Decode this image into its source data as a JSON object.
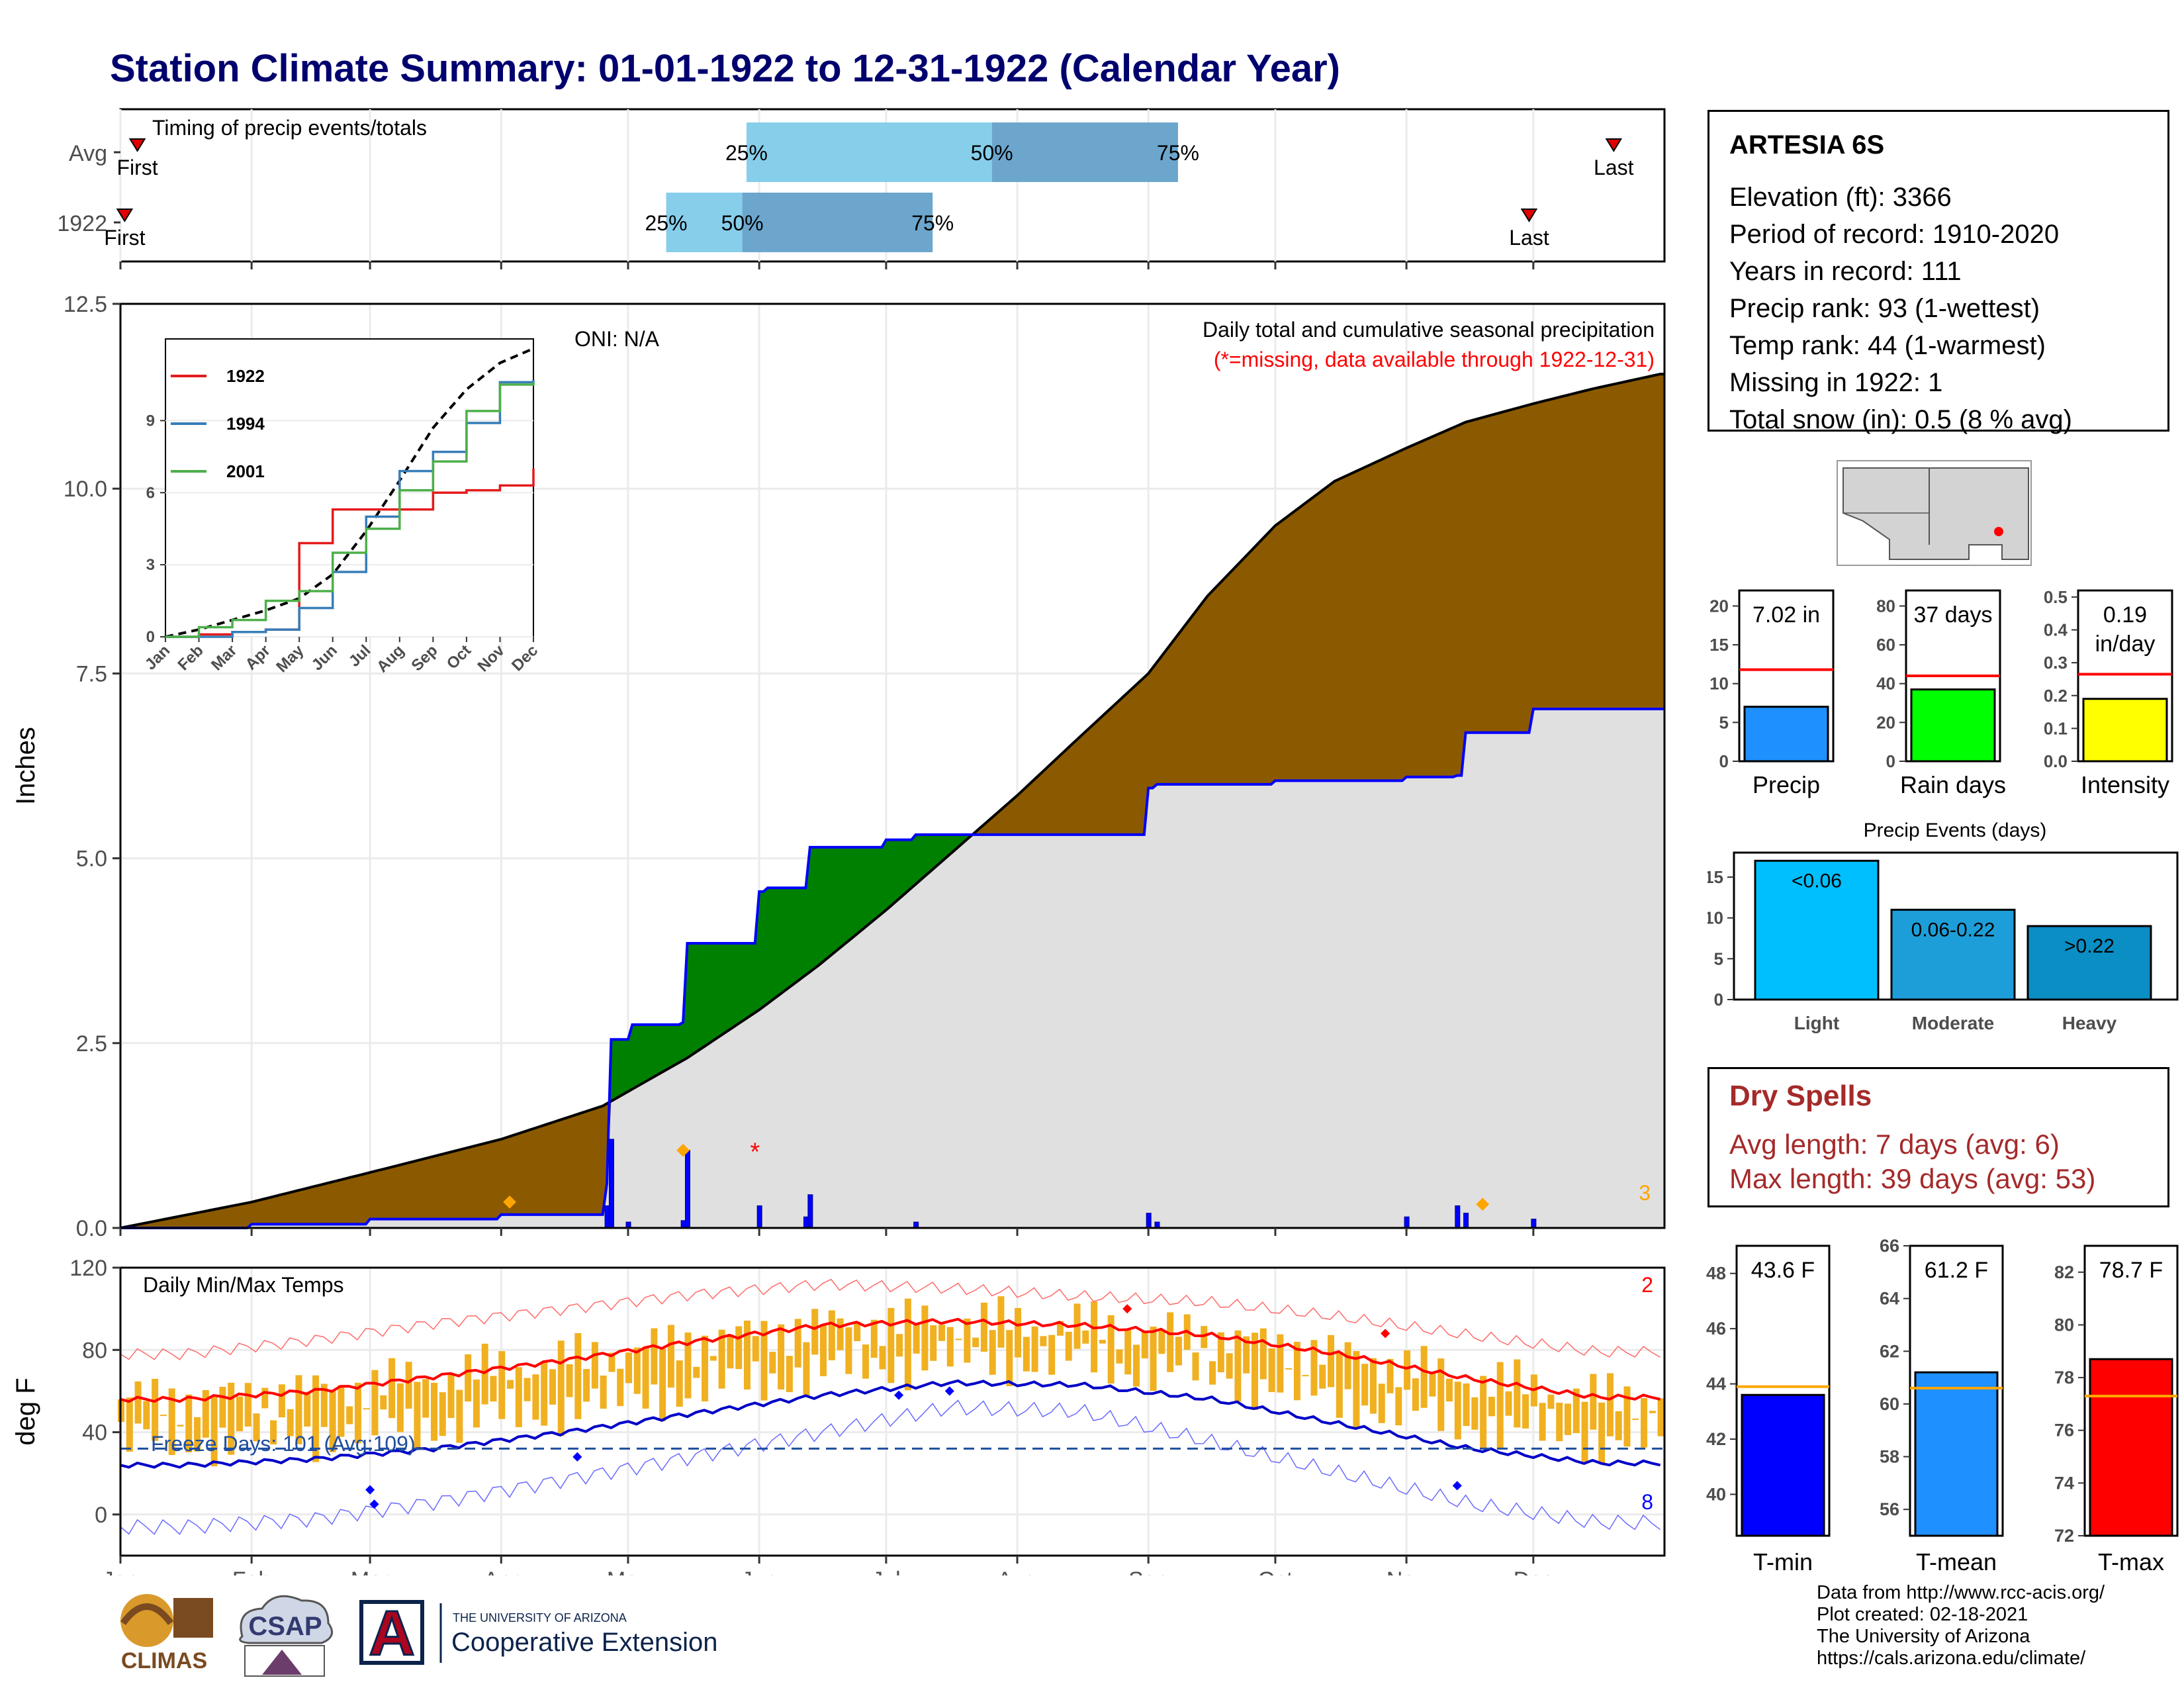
{
  "title": "Station Climate Summary: 01-01-1922 to 12-31-1922 (Calendar Year)",
  "colors": {
    "title": "#00006e",
    "observed_fill": "#8b5a00",
    "surplus_fill": "#008000",
    "normal_fill": "#e0e0e0",
    "observed_line": "#0000ff",
    "daily_bar": "#f0b020",
    "tmax_line": "#ff0000",
    "tmin_line": "#0000c8",
    "dry_spells": "#a52a2a",
    "missing": "#ff0000"
  },
  "station": {
    "name": "ARTESIA 6S",
    "elevation": "Elevation (ft): 3366",
    "period": "Period of record: 1910-2020",
    "years": "Years in record: 111",
    "precip_rank": "Precip rank: 93 (1-wettest)",
    "temp_rank": "Temp rank: 44 (1-warmest)",
    "missing": "Missing in 1922: 1",
    "snow": "Total snow (in): 0.5 (8 % avg)"
  },
  "timing_panel": {
    "label": "Timing of precip events/totals",
    "rows": [
      "Avg",
      "1922"
    ],
    "first_label": "First",
    "last_label": "Last",
    "pct_labels": [
      "25%",
      "50%",
      "75%"
    ],
    "avg": {
      "first": "Jan 5",
      "p25": "May 29",
      "p50": "Jul 26",
      "p75": "Sep 8",
      "last": "Dec 20"
    },
    "y1922": {
      "first": "Jan 2",
      "p25": "May 10",
      "p50": "May 28",
      "p75": "Jul 12",
      "last": "Nov 30"
    }
  },
  "precip_panel": {
    "ylabel": "Inches",
    "y_ticks": [
      "0.0",
      "2.5",
      "5.0",
      "7.5",
      "10.0",
      "12.5"
    ],
    "ylim": [
      0,
      12.5
    ],
    "oni": "ONI: N/A",
    "desc": "Daily total and cumulative seasonal precipitation",
    "missing_note": "(*=missing, data available through 1922-12-31)",
    "corner_count": "3",
    "missing_marker": "*"
  },
  "inset": {
    "y_ticks": [
      "0",
      "3",
      "6",
      "9"
    ],
    "months": [
      "Jan",
      "Feb",
      "Mar",
      "Apr",
      "May",
      "Jun",
      "Jul",
      "Aug",
      "Sep",
      "Oct",
      "Nov",
      "Dec"
    ],
    "legend": [
      "1922",
      "1994",
      "2001"
    ],
    "legend_colors": [
      "#e41a1c",
      "#377eb8",
      "#4daf4a"
    ]
  },
  "temp_panel": {
    "ylabel": "deg F",
    "label": "Daily Min/Max Temps",
    "freeze": "Freeze Days: 101 (Avg:109)",
    "y_ticks": [
      "0",
      "40",
      "80",
      "120"
    ],
    "count_high": "2",
    "count_low": "8"
  },
  "x_months": [
    "Jan",
    "Feb",
    "Mar",
    "Apr",
    "May",
    "Jun",
    "Jul",
    "Aug",
    "Sep",
    "Oct",
    "Nov",
    "Dec"
  ],
  "mini_bars": [
    {
      "label": "Precip",
      "value_text": "7.02 in",
      "value": 7.02,
      "avg": 11.8,
      "ylim": [
        0,
        22
      ],
      "ticks": [
        "0",
        "5",
        "10",
        "15",
        "20"
      ],
      "color": "#1e90ff"
    },
    {
      "label": "Rain days",
      "value_text": "37 days",
      "value": 37,
      "avg": 44,
      "ylim": [
        0,
        88
      ],
      "ticks": [
        "0",
        "20",
        "40",
        "60",
        "80"
      ],
      "color": "#00ff00"
    },
    {
      "label": "Intensity",
      "value_text": "0.19",
      "value_text2": "in/day",
      "value": 0.19,
      "avg": 0.265,
      "ylim": [
        0,
        0.52
      ],
      "ticks": [
        "0.0",
        "0.1",
        "0.2",
        "0.3",
        "0.4",
        "0.5"
      ],
      "color": "#ffff00"
    }
  ],
  "events": {
    "title": "Precip Events (days)",
    "ticks": [
      "0",
      "5",
      "10",
      "15"
    ],
    "bars": [
      {
        "label": "Light",
        "range": "<0.06",
        "value": 17,
        "color": "#00bfff"
      },
      {
        "label": "Moderate",
        "range": "0.06-0.22",
        "value": 11,
        "color": "#1e9ed8"
      },
      {
        "label": "Heavy",
        "range": ">0.22",
        "value": 9,
        "color": "#0a8ec4"
      }
    ]
  },
  "dry_spells": {
    "title": "Dry Spells",
    "avg": "Avg length: 7 days (avg: 6)",
    "max": "Max length: 39 days (avg: 53)"
  },
  "temp_bars": [
    {
      "label": "T-min",
      "value_text": "43.6 F",
      "value": 43.6,
      "avg": 43.9,
      "ylim": [
        38.5,
        49
      ],
      "ticks": [
        "40",
        "42",
        "44",
        "46",
        "48"
      ],
      "color": "#0000ff"
    },
    {
      "label": "T-mean",
      "value_text": "61.2 F",
      "value": 61.2,
      "avg": 60.6,
      "ylim": [
        55,
        66
      ],
      "ticks": [
        "56",
        "58",
        "60",
        "62",
        "64",
        "66"
      ],
      "color": "#1e90ff"
    },
    {
      "label": "T-max",
      "value_text": "78.7 F",
      "value": 78.7,
      "avg": 77.3,
      "ylim": [
        72,
        83
      ],
      "ticks": [
        "72",
        "74",
        "76",
        "78",
        "80",
        "82"
      ],
      "color": "#ff0000"
    }
  ],
  "footer": [
    "Data from http://www.rcc-acis.org/",
    "Plot created: 02-18-2021",
    "The University of Arizona",
    "https://cals.arizona.edu/climate/"
  ],
  "logos": {
    "climas": "CLIMAS",
    "csap": "CSAP",
    "ua_small": "THE UNIVERSITY OF ARIZONA",
    "coop": "Cooperative Extension",
    "ua_letter": "A"
  },
  "chart_data": [
    {
      "type": "area",
      "title": "Daily total and cumulative seasonal precipitation",
      "ylabel": "Inches",
      "ylim": [
        0,
        12.5
      ],
      "series": [
        {
          "name": "cumulative normal",
          "x": [
            "Jan 1",
            "Feb 1",
            "Mar 1",
            "Apr 1",
            "Apr 25",
            "May 15",
            "Jun 1",
            "Jun 15",
            "Jul 1",
            "Jul 15",
            "Aug 1",
            "Aug 15",
            "Sep 1",
            "Sep 15",
            "Oct 1",
            "Oct 15",
            "Nov 1",
            "Nov 15",
            "Dec 1",
            "Dec 15",
            "Dec 31"
          ],
          "values": [
            0,
            0.35,
            0.75,
            1.2,
            1.65,
            2.3,
            2.95,
            3.55,
            4.3,
            5.0,
            5.85,
            6.6,
            7.5,
            8.55,
            9.5,
            10.1,
            10.55,
            10.9,
            11.15,
            11.35,
            11.55
          ]
        },
        {
          "name": "1922 observed",
          "x": [
            "Jan 1",
            "Feb 1",
            "Mar 1",
            "Apr 1",
            "Apr 26",
            "Apr 27",
            "May 2",
            "May 14",
            "May 15",
            "Jun 1",
            "Jun 3",
            "Jun 12",
            "Jun 13",
            "Jul 1",
            "Jul 8",
            "Jul 26",
            "Aug 1",
            "Sep 1",
            "Sep 3",
            "Oct 1",
            "Nov 1",
            "Nov 13",
            "Nov 15",
            "Dec 1",
            "Dec 31"
          ],
          "values": [
            0,
            0.05,
            0.12,
            0.18,
            0.6,
            2.55,
            2.75,
            2.78,
            3.85,
            4.55,
            4.6,
            4.6,
            5.15,
            5.25,
            5.32,
            5.32,
            5.32,
            5.95,
            6.0,
            6.05,
            6.1,
            6.12,
            6.7,
            7.02,
            7.02
          ]
        }
      ],
      "daily_bars": {
        "x": [
          "Apr 26",
          "Apr 27",
          "May 1",
          "May 14",
          "May 15",
          "Jun 1",
          "Jun 12",
          "Jun 13",
          "Jul 8",
          "Sep 1",
          "Sep 3",
          "Nov 1",
          "Nov 13",
          "Nov 15",
          "Dec 1"
        ],
        "values": [
          0.3,
          1.2,
          0.08,
          0.1,
          1.05,
          0.3,
          0.15,
          0.45,
          0.08,
          0.2,
          0.08,
          0.15,
          0.3,
          0.2,
          0.12
        ]
      }
    },
    {
      "type": "line",
      "title": "Daily Min/Max Temps",
      "ylabel": "deg F",
      "ylim": [
        -20,
        120
      ],
      "x": [
        "Jan",
        "Feb",
        "Mar",
        "Apr",
        "May",
        "Jun",
        "Jul",
        "Aug",
        "Sep",
        "Oct",
        "Nov",
        "Dec"
      ],
      "series": [
        {
          "name": "avg max",
          "values": [
            56,
            60,
            67,
            75,
            84,
            92,
            94,
            92,
            87,
            78,
            66,
            57
          ]
        },
        {
          "name": "avg min",
          "values": [
            24,
            27,
            32,
            40,
            49,
            58,
            64,
            63,
            56,
            44,
            32,
            25
          ]
        },
        {
          "name": "record max",
          "values": [
            78,
            85,
            93,
            100,
            107,
            112,
            110,
            106,
            103,
            96,
            87,
            79
          ]
        },
        {
          "name": "record min",
          "values": [
            -6,
            -2,
            6,
            17,
            28,
            40,
            52,
            50,
            35,
            20,
            5,
            -4
          ]
        }
      ],
      "freeze_line": 32
    },
    {
      "type": "line",
      "title": "",
      "x": [
        "Jan",
        "Feb",
        "Mar",
        "Apr",
        "May",
        "Jun",
        "Jul",
        "Aug",
        "Sep",
        "Oct",
        "Nov",
        "Dec"
      ],
      "ylim": [
        0,
        12.4
      ],
      "series": [
        {
          "name": "mean",
          "values": [
            0,
            0.3,
            0.7,
            1.1,
            1.6,
            2.6,
            4.4,
            6.5,
            8.7,
            10.3,
            11.4,
            12.0
          ]
        },
        {
          "name": "1922",
          "values": [
            0,
            0.1,
            0.2,
            0.3,
            3.9,
            5.3,
            5.3,
            5.3,
            6.0,
            6.1,
            6.3,
            7.0
          ]
        },
        {
          "name": "1994",
          "values": [
            0,
            0,
            0.2,
            0.3,
            1.2,
            2.7,
            5.0,
            6.9,
            7.7,
            8.9,
            10.6,
            10.7
          ]
        },
        {
          "name": "2001",
          "values": [
            0,
            0.4,
            0.7,
            1.5,
            1.9,
            3.5,
            4.5,
            6.1,
            7.3,
            9.4,
            10.5,
            10.6
          ]
        }
      ]
    }
  ]
}
